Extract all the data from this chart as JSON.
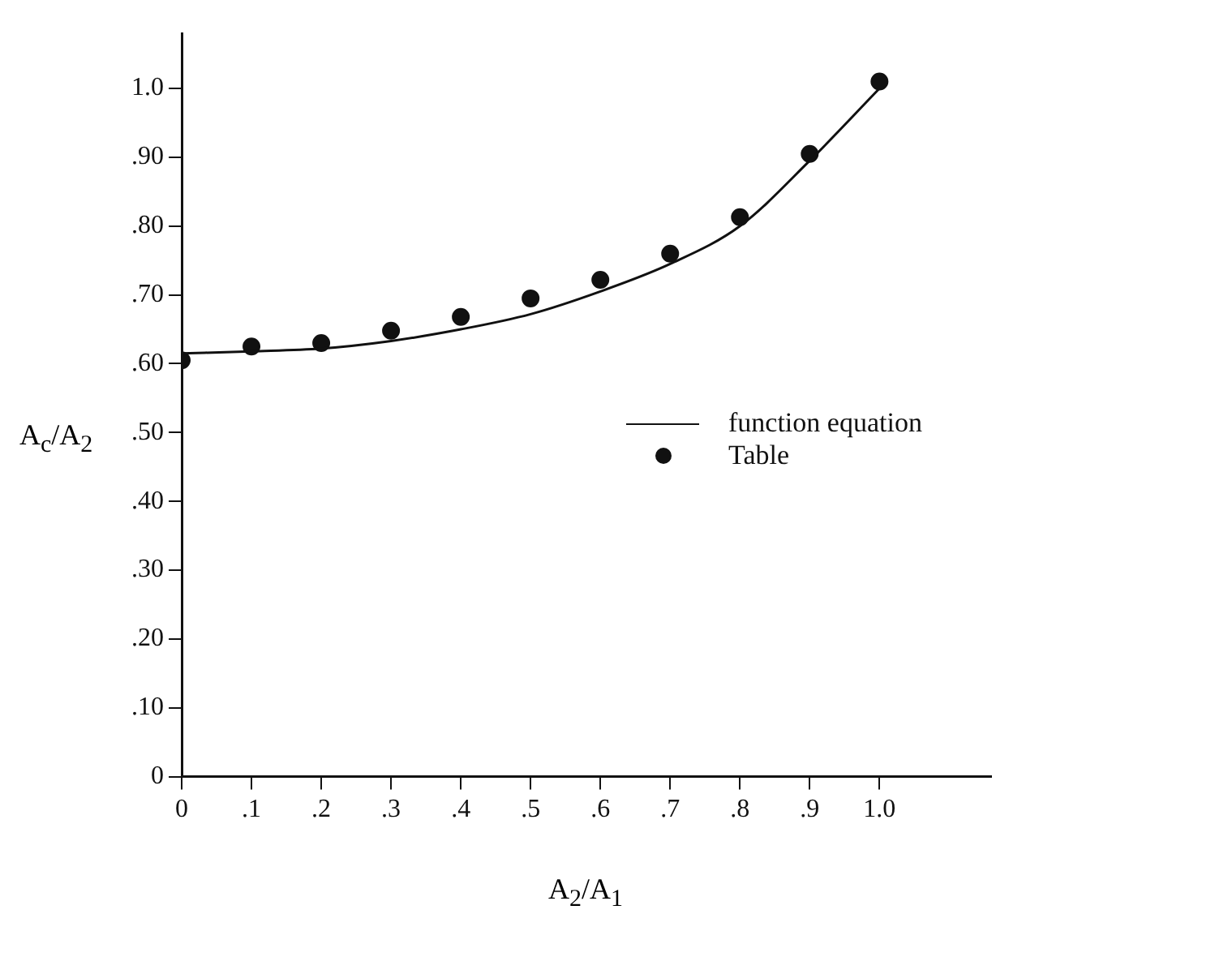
{
  "chart_data": {
    "type": "line",
    "xlabel": "A$_{2}$/A$_{1}$",
    "ylabel": "A$_{c}$/A$_{2}$",
    "series": [
      {
        "name": "function equation",
        "color": "#111111",
        "marker": "none",
        "line_style": "solid",
        "x": [
          0,
          0.1,
          0.2,
          0.3,
          0.4,
          0.5,
          0.6,
          0.7,
          0.8,
          0.9,
          1.0
        ],
        "values": [
          0.615,
          0.618,
          0.622,
          0.633,
          0.65,
          0.672,
          0.705,
          0.745,
          0.8,
          0.895,
          1.0
        ]
      },
      {
        "name": "Table",
        "type": "scatter",
        "color": "#111111",
        "marker": "circle",
        "x": [
          0,
          0.1,
          0.2,
          0.3,
          0.4,
          0.5,
          0.6,
          0.7,
          0.8,
          0.9,
          1.0
        ],
        "values": [
          0.605,
          0.625,
          0.63,
          0.648,
          0.668,
          0.695,
          0.722,
          0.76,
          0.813,
          0.905,
          1.01
        ]
      }
    ],
    "xlim": [
      0,
      1.16
    ],
    "ylim": [
      0,
      1.08
    ],
    "xticks": [
      0,
      {
        "value": 0.1,
        "label": ".1"
      },
      {
        "value": 0.2,
        "label": ".2"
      },
      {
        "value": 0.3,
        "label": ".3"
      },
      {
        "value": 0.4,
        "label": ".4"
      },
      {
        "value": 0.5,
        "label": ".5"
      },
      {
        "value": 0.6,
        "label": ".6"
      },
      {
        "value": 0.7,
        "label": ".7"
      },
      {
        "value": 0.8,
        "label": ".8"
      },
      {
        "value": 0.9,
        "label": ".9"
      },
      {
        "value": 1.0,
        "label": "1.0"
      }
    ],
    "yticks": [
      0,
      {
        "value": 0.1,
        "label": ".10"
      },
      {
        "value": 0.2,
        "label": ".20"
      },
      {
        "value": 0.3,
        "label": ".30"
      },
      {
        "value": 0.4,
        "label": ".40"
      },
      {
        "value": 0.5,
        "label": ".50"
      },
      {
        "value": 0.6,
        "label": ".60"
      },
      {
        "value": 0.7,
        "label": ".70"
      },
      {
        "value": 0.8,
        "label": ".80"
      },
      {
        "value": 0.9,
        "label": ".90"
      },
      {
        "value": 1.0,
        "label": "1.0"
      }
    ],
    "grid": false,
    "legend": "right"
  }
}
